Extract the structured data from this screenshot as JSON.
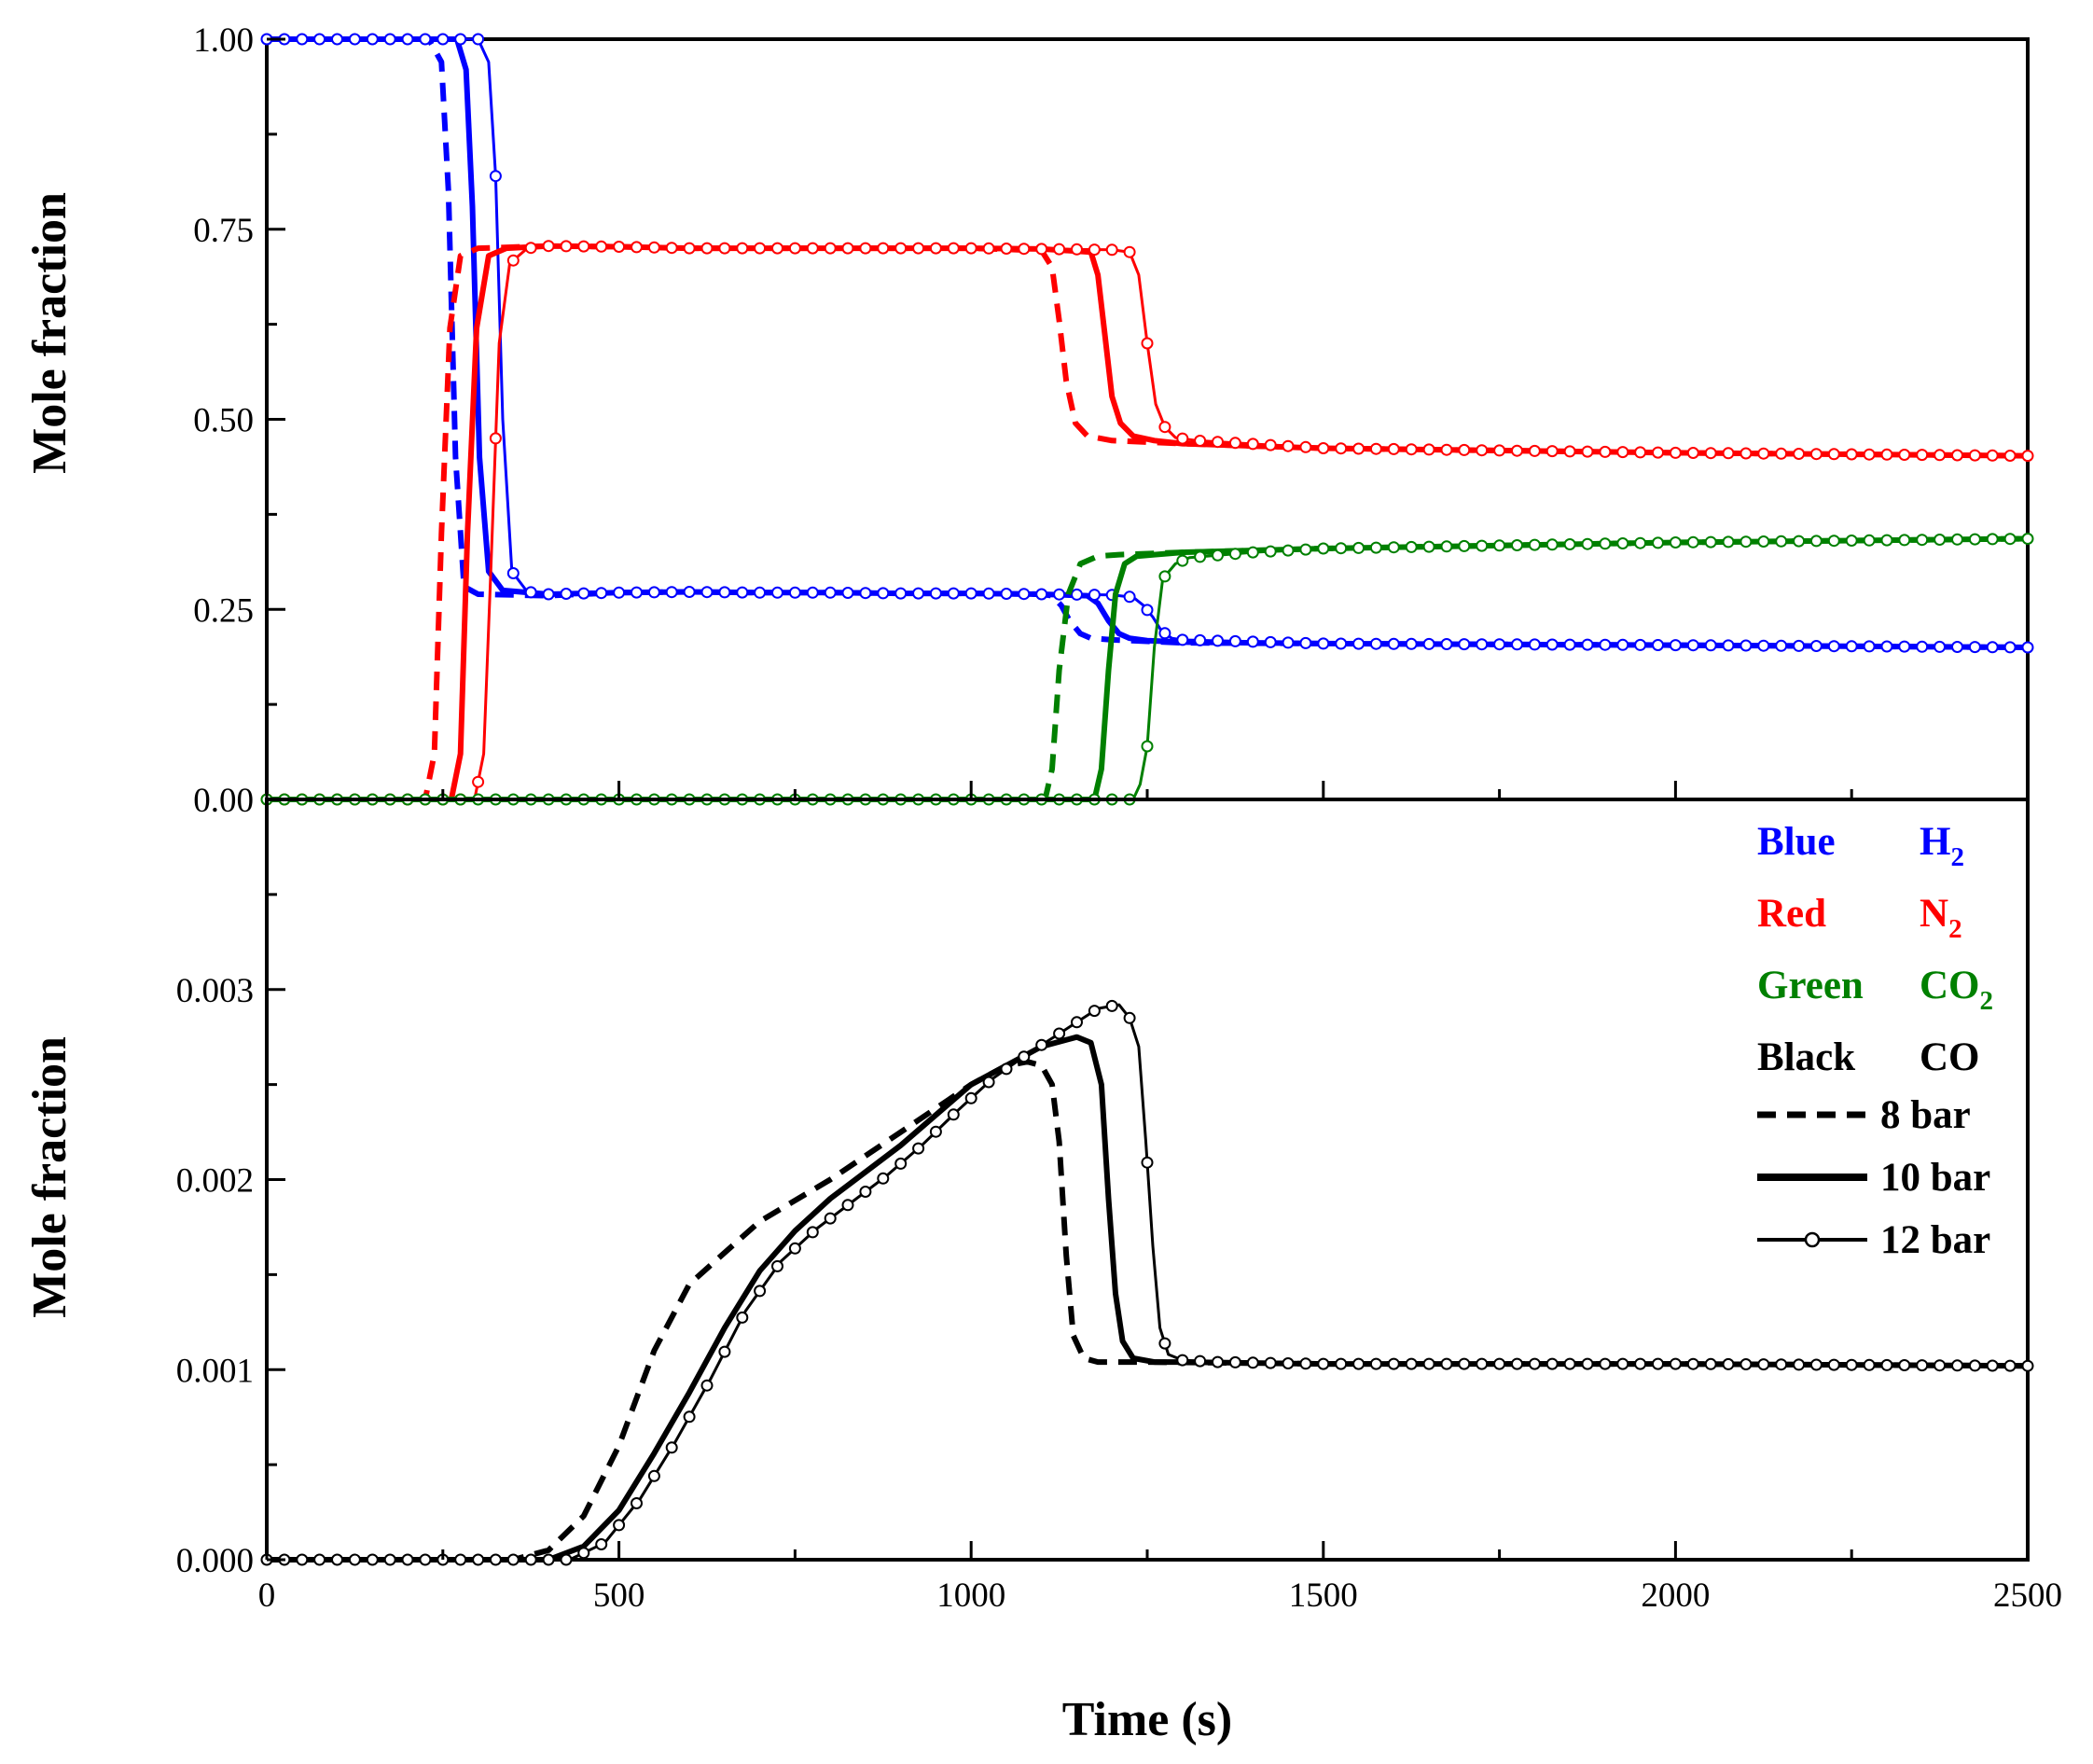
{
  "chart_data": [
    {
      "panel": "top",
      "type": "line",
      "title": "",
      "xlabel": "",
      "ylabel": "Mole fraction",
      "xlim": [
        0,
        2500
      ],
      "ylim": [
        0,
        1
      ],
      "yticks": [
        "0.00",
        "0.25",
        "0.50",
        "0.75",
        "1.00"
      ],
      "series": [
        {
          "name": "H2 8 bar",
          "gas": "H2",
          "pressure": "8 bar",
          "color": "#0000ff",
          "style": "dashed",
          "x": [
            0,
            230,
            248,
            258,
            268,
            280,
            300,
            400,
            500,
            600,
            700,
            800,
            900,
            1000,
            1100,
            1115,
            1128,
            1140,
            1155,
            1170,
            1200,
            1250,
            1300,
            1500,
            2000,
            2500
          ],
          "y": [
            1.0,
            1.0,
            0.97,
            0.8,
            0.45,
            0.28,
            0.27,
            0.268,
            0.272,
            0.273,
            0.272,
            0.272,
            0.271,
            0.271,
            0.27,
            0.268,
            0.255,
            0.235,
            0.218,
            0.212,
            0.21,
            0.208,
            0.206,
            0.205,
            0.203,
            0.2
          ]
        },
        {
          "name": "H2 10 bar",
          "gas": "H2",
          "pressure": "10 bar",
          "color": "#0000ff",
          "style": "solid",
          "x": [
            0,
            270,
            283,
            292,
            302,
            315,
            335,
            400,
            500,
            600,
            700,
            800,
            900,
            1000,
            1100,
            1165,
            1180,
            1195,
            1210,
            1225,
            1250,
            1300,
            1500,
            2000,
            2500
          ],
          "y": [
            1.0,
            1.0,
            0.96,
            0.78,
            0.45,
            0.3,
            0.275,
            0.27,
            0.272,
            0.273,
            0.272,
            0.272,
            0.271,
            0.271,
            0.27,
            0.268,
            0.258,
            0.235,
            0.218,
            0.212,
            0.209,
            0.207,
            0.205,
            0.203,
            0.2
          ]
        },
        {
          "name": "H2 12 bar",
          "gas": "H2",
          "pressure": "12 bar",
          "color": "#0000ff",
          "style": "circles",
          "x": [
            0,
            300,
            315,
            325,
            335,
            348,
            370,
            400,
            500,
            600,
            700,
            800,
            900,
            1000,
            1100,
            1200,
            1230,
            1245,
            1258,
            1270,
            1285,
            1300,
            1500,
            2000,
            2500
          ],
          "y": [
            1.0,
            1.0,
            0.97,
            0.82,
            0.5,
            0.3,
            0.273,
            0.27,
            0.272,
            0.273,
            0.272,
            0.272,
            0.271,
            0.271,
            0.27,
            0.269,
            0.266,
            0.255,
            0.24,
            0.222,
            0.212,
            0.21,
            0.205,
            0.203,
            0.2
          ]
        },
        {
          "name": "N2 8 bar",
          "gas": "N2",
          "pressure": "8 bar",
          "color": "#ff0000",
          "style": "dashed",
          "x": [
            0,
            225,
            238,
            248,
            260,
            275,
            300,
            400,
            500,
            600,
            700,
            800,
            900,
            1000,
            1100,
            1115,
            1125,
            1135,
            1148,
            1165,
            1200,
            1300,
            1500,
            2000,
            2500
          ],
          "y": [
            0.0,
            0.0,
            0.06,
            0.35,
            0.62,
            0.715,
            0.725,
            0.728,
            0.727,
            0.725,
            0.725,
            0.725,
            0.725,
            0.725,
            0.722,
            0.7,
            0.63,
            0.55,
            0.495,
            0.478,
            0.472,
            0.468,
            0.462,
            0.456,
            0.452
          ]
        },
        {
          "name": "N2 10 bar",
          "gas": "N2",
          "pressure": "10 bar",
          "color": "#ff0000",
          "style": "solid",
          "x": [
            0,
            262,
            275,
            285,
            298,
            315,
            340,
            400,
            500,
            600,
            700,
            800,
            900,
            1000,
            1100,
            1170,
            1180,
            1190,
            1200,
            1212,
            1230,
            1260,
            1300,
            1500,
            2000,
            2500
          ],
          "y": [
            0.0,
            0.0,
            0.06,
            0.35,
            0.62,
            0.715,
            0.725,
            0.728,
            0.727,
            0.725,
            0.725,
            0.725,
            0.725,
            0.725,
            0.724,
            0.72,
            0.69,
            0.61,
            0.53,
            0.495,
            0.478,
            0.472,
            0.468,
            0.462,
            0.456,
            0.452
          ]
        },
        {
          "name": "N2 12 bar",
          "gas": "N2",
          "pressure": "12 bar",
          "color": "#ff0000",
          "style": "circles",
          "x": [
            0,
            295,
            308,
            318,
            330,
            345,
            370,
            400,
            500,
            600,
            700,
            800,
            900,
            1000,
            1100,
            1200,
            1225,
            1238,
            1250,
            1262,
            1275,
            1290,
            1320,
            1500,
            2000,
            2500
          ],
          "y": [
            0.0,
            0.0,
            0.06,
            0.3,
            0.6,
            0.705,
            0.725,
            0.728,
            0.727,
            0.725,
            0.725,
            0.725,
            0.725,
            0.725,
            0.724,
            0.723,
            0.72,
            0.69,
            0.6,
            0.52,
            0.49,
            0.476,
            0.472,
            0.462,
            0.456,
            0.452
          ]
        },
        {
          "name": "CO2 8 bar",
          "gas": "CO2",
          "pressure": "8 bar",
          "color": "#008000",
          "style": "dashed",
          "x": [
            0,
            1105,
            1115,
            1125,
            1138,
            1155,
            1180,
            1210,
            1300,
            1500,
            2000,
            2500
          ],
          "y": [
            0.0,
            0.0,
            0.04,
            0.17,
            0.27,
            0.31,
            0.32,
            0.322,
            0.325,
            0.33,
            0.338,
            0.343
          ]
        },
        {
          "name": "CO2 10 bar",
          "gas": "CO2",
          "pressure": "10 bar",
          "color": "#008000",
          "style": "solid",
          "x": [
            0,
            1175,
            1185,
            1195,
            1205,
            1218,
            1235,
            1260,
            1300,
            1500,
            2000,
            2500
          ],
          "y": [
            0.0,
            0.0,
            0.04,
            0.17,
            0.27,
            0.31,
            0.32,
            0.322,
            0.325,
            0.33,
            0.338,
            0.343
          ]
        },
        {
          "name": "CO2 12 bar",
          "gas": "CO2",
          "pressure": "12 bar",
          "color": "#008000",
          "style": "circles",
          "x": [
            0,
            1230,
            1240,
            1250,
            1260,
            1272,
            1290,
            1310,
            1400,
            1500,
            2000,
            2500
          ],
          "y": [
            0.0,
            0.0,
            0.02,
            0.07,
            0.2,
            0.29,
            0.31,
            0.318,
            0.325,
            0.33,
            0.338,
            0.343
          ]
        }
      ]
    },
    {
      "panel": "bottom",
      "type": "line",
      "title": "",
      "xlabel": "Time (s)",
      "ylabel": "Mole fraction",
      "xlim": [
        0,
        2500
      ],
      "ylim": [
        0,
        0.004
      ],
      "xticks": [
        "0",
        "500",
        "1000",
        "1500",
        "2000",
        "2500"
      ],
      "yticks": [
        "0.000",
        "0.001",
        "0.002",
        "0.003"
      ],
      "series": [
        {
          "name": "CO 8 bar",
          "gas": "CO",
          "pressure": "8 bar",
          "color": "#000000",
          "style": "dashed",
          "x": [
            0,
            350,
            400,
            450,
            500,
            550,
            600,
            700,
            800,
            900,
            1000,
            1050,
            1080,
            1100,
            1115,
            1125,
            1135,
            1145,
            1160,
            1180,
            1250,
            1500,
            2000,
            2500
          ],
          "y": [
            0.0,
            0.0,
            5e-05,
            0.00023,
            0.0006,
            0.0011,
            0.00145,
            0.00178,
            0.002,
            0.00225,
            0.0025,
            0.0026,
            0.00262,
            0.0026,
            0.0025,
            0.0022,
            0.0016,
            0.00118,
            0.00106,
            0.00104,
            0.00104,
            0.00103,
            0.00103,
            0.00102
          ]
        },
        {
          "name": "CO 10 bar",
          "gas": "CO",
          "pressure": "10 bar",
          "color": "#000000",
          "style": "solid",
          "x": [
            0,
            400,
            450,
            500,
            550,
            600,
            650,
            700,
            750,
            800,
            900,
            1000,
            1100,
            1150,
            1170,
            1185,
            1195,
            1205,
            1215,
            1230,
            1260,
            1300,
            1500,
            2000,
            2500
          ],
          "y": [
            0.0,
            0.0,
            7e-05,
            0.00026,
            0.00056,
            0.00088,
            0.00122,
            0.00152,
            0.00173,
            0.0019,
            0.00218,
            0.0025,
            0.0027,
            0.00275,
            0.00272,
            0.0025,
            0.0019,
            0.0014,
            0.00115,
            0.00106,
            0.00104,
            0.00104,
            0.00103,
            0.00103,
            0.00102
          ]
        },
        {
          "name": "CO 12 bar",
          "gas": "CO",
          "pressure": "12 bar",
          "color": "#000000",
          "style": "circles",
          "x": [
            0,
            430,
            480,
            530,
            580,
            630,
            680,
            730,
            780,
            830,
            880,
            930,
            980,
            1030,
            1080,
            1130,
            1180,
            1210,
            1225,
            1238,
            1248,
            1258,
            1268,
            1280,
            1300,
            1350,
            1500,
            2000,
            2500
          ],
          "y": [
            0.0,
            0.0,
            9e-05,
            0.00032,
            0.00062,
            0.00095,
            0.00131,
            0.00157,
            0.00174,
            0.00188,
            0.00202,
            0.00218,
            0.00236,
            0.00253,
            0.00266,
            0.00278,
            0.0029,
            0.00292,
            0.00285,
            0.0027,
            0.0022,
            0.00165,
            0.00122,
            0.00108,
            0.00105,
            0.00104,
            0.00103,
            0.00103,
            0.00102
          ]
        }
      ]
    }
  ],
  "legend": {
    "color_key": [
      {
        "color_word": "Blue",
        "gas": "H",
        "sub": "2",
        "color": "#0000ff"
      },
      {
        "color_word": "Red",
        "gas": "N",
        "sub": "2",
        "color": "#ff0000"
      },
      {
        "color_word": "Green",
        "gas": "CO",
        "sub": "2",
        "color": "#008000"
      },
      {
        "color_word": "Black",
        "gas": "CO",
        "sub": "",
        "color": "#000000"
      }
    ],
    "line_key": [
      {
        "label": "8 bar",
        "style": "dashed"
      },
      {
        "label": "10 bar",
        "style": "solid"
      },
      {
        "label": "12 bar",
        "style": "circles"
      }
    ]
  }
}
